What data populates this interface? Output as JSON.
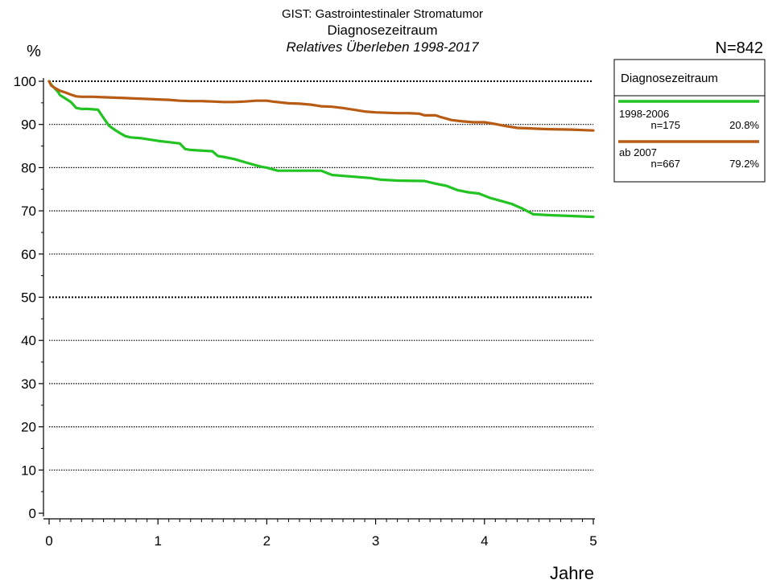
{
  "chart_data": {
    "type": "line",
    "title": "GIST: Gastrointestinaler Stromatumor",
    "subtitle": "Diagnosezeitraum",
    "subtitle2": "Relatives Überleben 1998-2017",
    "total_n": "N=842",
    "ylabel_unit": "%",
    "xlabel": "Jahre",
    "xlim": [
      0,
      5
    ],
    "ylim": [
      0,
      100
    ],
    "x_ticks": [
      0,
      1,
      2,
      3,
      4,
      5
    ],
    "y_ticks": [
      0,
      10,
      20,
      30,
      40,
      50,
      60,
      70,
      80,
      90,
      100
    ],
    "grid": "horizontal dotted",
    "legend": {
      "title": "Diagnosezeitraum",
      "placement": "top-right outside",
      "entries": [
        {
          "label": "1998-2006",
          "n": "n=175",
          "pct": "20.8%"
        },
        {
          "label": "ab 2007",
          "n": "n=667",
          "pct": "79.2%"
        }
      ]
    },
    "series": [
      {
        "name": "1998-2006",
        "color": "#22c322",
        "x": [
          0,
          0.02,
          0.05,
          0.08,
          0.1,
          0.15,
          0.2,
          0.25,
          0.3,
          0.35,
          0.45,
          0.5,
          0.55,
          0.6,
          0.65,
          0.7,
          0.75,
          0.85,
          1.0,
          1.1,
          1.2,
          1.25,
          1.3,
          1.5,
          1.55,
          1.6,
          1.7,
          1.85,
          1.95,
          2.0,
          2.1,
          2.2,
          2.5,
          2.6,
          2.8,
          2.95,
          3.05,
          3.2,
          3.45,
          3.55,
          3.65,
          3.75,
          3.85,
          3.95,
          4.05,
          4.15,
          4.25,
          4.35,
          4.45,
          4.6,
          4.8,
          5.0
        ],
        "y": [
          100,
          99.2,
          98.4,
          97.6,
          96.8,
          96.0,
          95.2,
          93.8,
          93.6,
          93.6,
          93.4,
          91.5,
          89.7,
          88.8,
          88.0,
          87.3,
          87.0,
          86.8,
          86.2,
          85.9,
          85.6,
          84.3,
          84.1,
          83.8,
          82.7,
          82.5,
          82.0,
          80.9,
          80.2,
          80.0,
          79.3,
          79.3,
          79.3,
          78.3,
          77.9,
          77.6,
          77.2,
          77.0,
          76.9,
          76.3,
          75.8,
          74.8,
          74.3,
          74.0,
          73.0,
          72.3,
          71.6,
          70.5,
          69.2,
          69.0,
          68.8,
          68.6
        ]
      },
      {
        "name": "ab 2007",
        "color": "#b85c15",
        "x": [
          0,
          0.02,
          0.05,
          0.1,
          0.15,
          0.2,
          0.25,
          0.3,
          0.4,
          0.5,
          0.6,
          0.7,
          0.8,
          0.9,
          1.0,
          1.1,
          1.2,
          1.3,
          1.4,
          1.5,
          1.6,
          1.7,
          1.8,
          1.9,
          2.0,
          2.05,
          2.2,
          2.3,
          2.4,
          2.5,
          2.6,
          2.7,
          2.8,
          2.9,
          3.0,
          3.1,
          3.2,
          3.3,
          3.4,
          3.45,
          3.55,
          3.6,
          3.7,
          3.8,
          3.9,
          4.0,
          4.1,
          4.2,
          4.3,
          4.4,
          4.5,
          4.6,
          4.8,
          4.9,
          5.0
        ],
        "y": [
          100,
          99.0,
          98.5,
          97.8,
          97.4,
          96.9,
          96.5,
          96.4,
          96.4,
          96.3,
          96.2,
          96.1,
          96.0,
          95.9,
          95.8,
          95.7,
          95.5,
          95.4,
          95.4,
          95.3,
          95.2,
          95.2,
          95.3,
          95.5,
          95.5,
          95.3,
          94.9,
          94.8,
          94.6,
          94.2,
          94.1,
          93.8,
          93.4,
          93.0,
          92.8,
          92.7,
          92.6,
          92.6,
          92.5,
          92.1,
          92.1,
          91.7,
          91.0,
          90.7,
          90.5,
          90.5,
          90.1,
          89.6,
          89.2,
          89.1,
          89.0,
          88.9,
          88.8,
          88.7,
          88.6
        ]
      }
    ]
  }
}
